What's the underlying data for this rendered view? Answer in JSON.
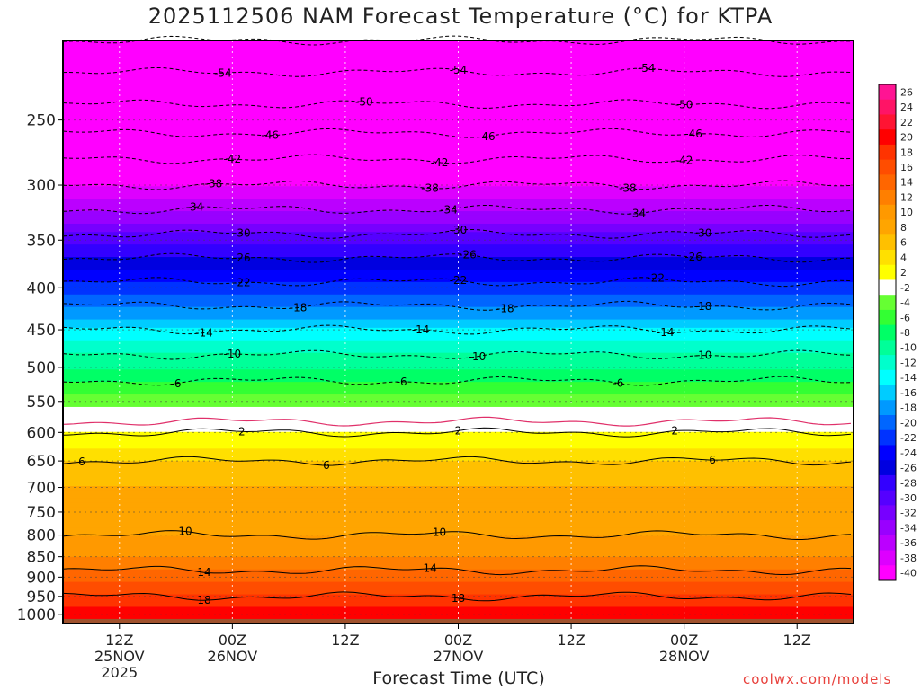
{
  "title": "2025112506 NAM Forecast Temperature (°C) for KTPA",
  "xlabel": "Forecast Time (UTC)",
  "credit": "coolwx.com/models",
  "chart_data": {
    "type": "heatmap",
    "title": "2025112506 NAM Forecast Temperature (°C) for KTPA",
    "xlabel": "Forecast Time (UTC)",
    "ylabel": "",
    "y_scale": "log",
    "y_inverted": true,
    "ylim": [
      1025,
      200
    ],
    "y_ticks": [
      250,
      300,
      350,
      400,
      450,
      500,
      550,
      600,
      650,
      700,
      750,
      800,
      850,
      900,
      950,
      1000
    ],
    "x_range_hours": [
      0,
      84
    ],
    "x_ticks": [
      {
        "hour": 6,
        "lines": [
          "12Z",
          "25NOV",
          "2025"
        ]
      },
      {
        "hour": 18,
        "lines": [
          "00Z",
          "26NOV"
        ]
      },
      {
        "hour": 30,
        "lines": [
          "12Z"
        ]
      },
      {
        "hour": 42,
        "lines": [
          "00Z",
          "27NOV"
        ]
      },
      {
        "hour": 54,
        "lines": [
          "12Z"
        ]
      },
      {
        "hour": 66,
        "lines": [
          "00Z",
          "28NOV"
        ]
      },
      {
        "hour": 78,
        "lines": [
          "12Z"
        ]
      }
    ],
    "grid": true,
    "colorbar_labels": [
      "26",
      "24",
      "22",
      "20",
      "18",
      "16",
      "14",
      "12",
      "10",
      "8",
      "6",
      "4",
      "2",
      "-2",
      "-4",
      "-6",
      "-8",
      "-10",
      "-12",
      "-14",
      "-16",
      "-18",
      "-20",
      "-22",
      "-24",
      "-26",
      "-28",
      "-30",
      "-32",
      "-34",
      "-36",
      "-38",
      "-40"
    ],
    "colorbar_colors": [
      "#ff1493",
      "#ff1466",
      "#ff1433",
      "#ff0000",
      "#ff3300",
      "#ff4d00",
      "#ff6600",
      "#ff7f00",
      "#ff9900",
      "#ffa500",
      "#ffc000",
      "#ffe000",
      "#ffff00",
      "#ffffff",
      "#66ff33",
      "#33ff33",
      "#00ff66",
      "#00ff99",
      "#00ffcc",
      "#00ffff",
      "#00ccff",
      "#0099ff",
      "#0066ff",
      "#0033ff",
      "#0000ff",
      "#0000e0",
      "#3300ff",
      "#5500ff",
      "#7700ff",
      "#9900ff",
      "#bb00ff",
      "#dd00ff",
      "#ff00ff"
    ],
    "ground_color": "#a0522d",
    "contour_levels": [
      -58,
      -54,
      -50,
      -46,
      -42,
      -38,
      -34,
      -30,
      -26,
      -22,
      -18,
      -14,
      -10,
      -6,
      2,
      6,
      10,
      14,
      18
    ],
    "contour_label_positions": [
      {
        "level": -54,
        "hours": [
          17,
          42,
          62
        ]
      },
      {
        "level": -50,
        "hours": [
          32,
          66
        ]
      },
      {
        "level": -46,
        "hours": [
          22,
          45,
          67
        ]
      },
      {
        "level": -42,
        "hours": [
          18,
          40,
          66
        ]
      },
      {
        "level": -38,
        "hours": [
          16,
          39,
          60
        ]
      },
      {
        "level": -34,
        "hours": [
          14,
          41,
          61
        ]
      },
      {
        "level": -30,
        "hours": [
          19,
          42,
          68
        ]
      },
      {
        "level": -26,
        "hours": [
          19,
          43,
          67
        ]
      },
      {
        "level": -22,
        "hours": [
          19,
          42,
          63
        ]
      },
      {
        "level": -18,
        "hours": [
          25,
          47,
          68
        ]
      },
      {
        "level": -14,
        "hours": [
          15,
          38,
          64
        ]
      },
      {
        "level": -10,
        "hours": [
          18,
          44,
          68
        ]
      },
      {
        "level": -6,
        "hours": [
          12,
          36,
          59
        ]
      },
      {
        "level": 2,
        "hours": [
          19,
          42,
          65
        ]
      },
      {
        "level": 6,
        "hours": [
          2,
          28,
          69
        ]
      },
      {
        "level": 10,
        "hours": [
          13,
          40
        ]
      },
      {
        "level": 14,
        "hours": [
          15,
          39
        ]
      },
      {
        "level": 18,
        "hours": [
          15,
          42
        ]
      }
    ],
    "profile": [
      {
        "p": 1020,
        "t": 22
      },
      {
        "p": 1000,
        "t": 21
      },
      {
        "p": 950,
        "t": 18
      },
      {
        "p": 900,
        "t": 15
      },
      {
        "p": 850,
        "t": 12
      },
      {
        "p": 800,
        "t": 10
      },
      {
        "p": 750,
        "t": 9
      },
      {
        "p": 700,
        "t": 8
      },
      {
        "p": 650,
        "t": 6
      },
      {
        "p": 600,
        "t": 2
      },
      {
        "p": 550,
        "t": -3
      },
      {
        "p": 500,
        "t": -8
      },
      {
        "p": 450,
        "t": -14
      },
      {
        "p": 400,
        "t": -21
      },
      {
        "p": 350,
        "t": -29
      },
      {
        "p": 300,
        "t": -38
      },
      {
        "p": 250,
        "t": -48
      },
      {
        "p": 200,
        "t": -58
      }
    ]
  }
}
